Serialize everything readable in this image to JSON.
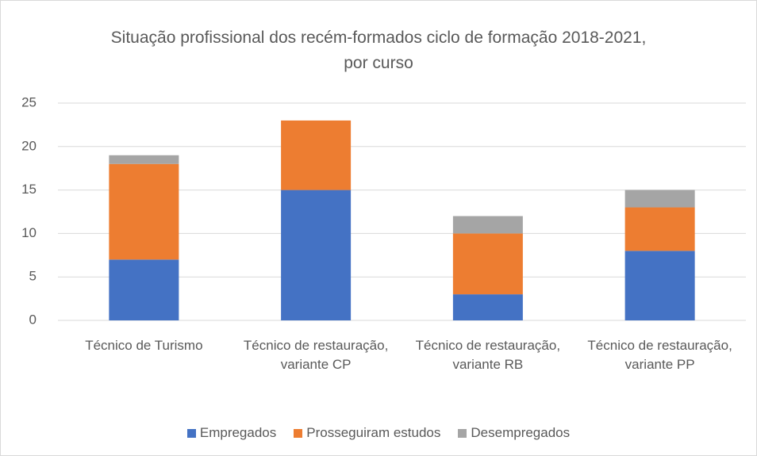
{
  "chart_data": {
    "type": "stacked_bar",
    "title": "Situação profissional dos recém-formados ciclo de formação 2018-2021, por curso",
    "categories": [
      "Técnico de Turismo",
      "Técnico de restauração, variante CP",
      "Técnico de restauração, variante RB",
      "Técnico de restauração, variante PP"
    ],
    "series": [
      {
        "name": "Empregados",
        "color": "#4472c4",
        "values": [
          7,
          15,
          3,
          8
        ]
      },
      {
        "name": "Prosseguiram estudos",
        "color": "#ed7d31",
        "values": [
          11,
          8,
          7,
          5
        ]
      },
      {
        "name": "Desempregados",
        "color": "#a5a5a5",
        "values": [
          1,
          0,
          2,
          2
        ]
      }
    ],
    "ylim": [
      0,
      25
    ],
    "yticks": [
      0,
      5,
      10,
      15,
      20,
      25
    ],
    "grid": true,
    "legend": "bottom"
  }
}
